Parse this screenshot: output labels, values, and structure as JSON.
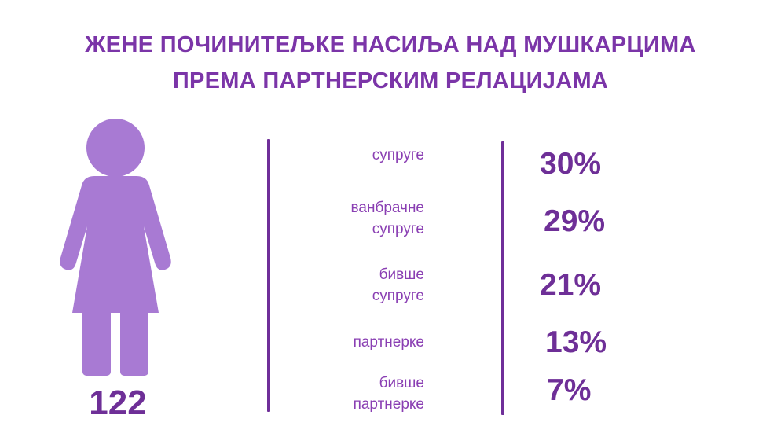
{
  "title": {
    "line1": "ЖЕНЕ ПОЧИНИТЕЉКЕ НАСИЉА НАД МУШКАРЦИМА",
    "line2": "ПРЕМА ПАРТНЕРСКИМ РЕЛАЦИЈАМА"
  },
  "total": "122",
  "colors": {
    "title": "#7b35a8",
    "figure": "#a87ad3",
    "value": "#6e2f97",
    "divider": "#6f2f99"
  },
  "icon": "woman-figure-icon",
  "chart_data": {
    "type": "table",
    "categories": [
      "супруге",
      "ванбрачне супруге",
      "бивше супруге",
      "партнерке",
      "бивше партнерке"
    ],
    "values": [
      30,
      29,
      21,
      13,
      7
    ],
    "unit": "%",
    "label_lines": [
      [
        "супруге"
      ],
      [
        "ванбрачне",
        "супруге"
      ],
      [
        "бивше",
        "супруге"
      ],
      [
        "партнерке"
      ],
      [
        "бивше",
        "партнерке"
      ]
    ],
    "value_labels": [
      "30%",
      "29%",
      "21%",
      "13%",
      "7%"
    ]
  }
}
